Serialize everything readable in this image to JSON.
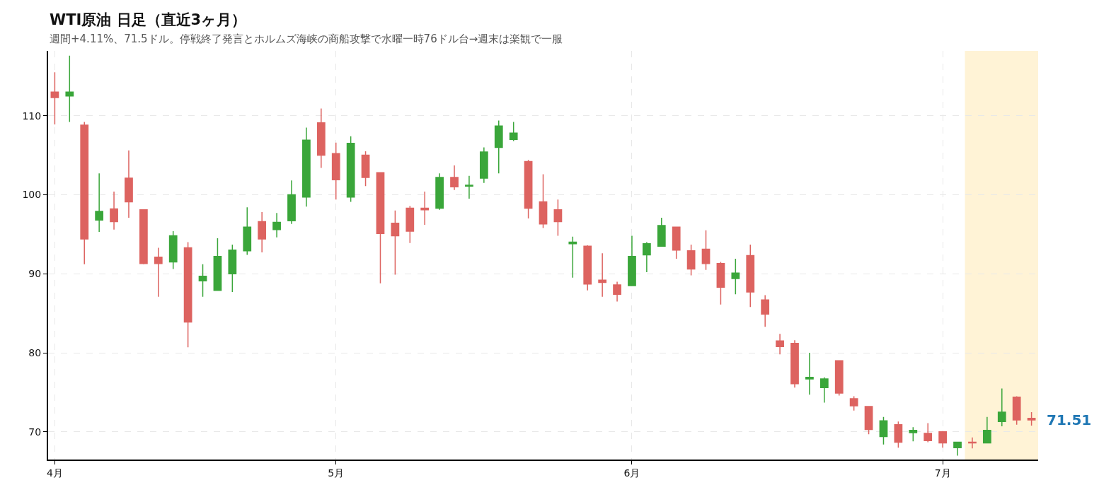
{
  "chart_data": {
    "type": "candlestick",
    "title": "WTI原油 日足（直近3ヶ月）",
    "subtitle": "週間+4.11%、71.5ドル。停戦終了発言とホルムズ海峡の商船攻撃で水曜一時76ドル台→週末は楽観で一服",
    "categories": [
      "4月",
      null,
      null,
      null,
      null,
      null,
      null,
      null,
      null,
      null,
      null,
      null,
      null,
      null,
      null,
      null,
      null,
      null,
      null,
      "5月",
      null,
      null,
      null,
      null,
      null,
      null,
      null,
      null,
      null,
      null,
      null,
      null,
      null,
      null,
      null,
      null,
      null,
      null,
      null,
      "6月",
      null,
      null,
      null,
      null,
      null,
      null,
      null,
      null,
      null,
      null,
      null,
      null,
      null,
      null,
      null,
      null,
      null,
      null,
      null,
      null,
      "7月",
      null,
      null,
      null,
      null,
      null,
      null
    ],
    "ohlc": [
      [
        113.0,
        115.5,
        108.9,
        112.3
      ],
      [
        112.5,
        117.6,
        109.2,
        113.0
      ],
      [
        108.8,
        109.2,
        91.2,
        94.4
      ],
      [
        96.8,
        102.7,
        95.3,
        97.9
      ],
      [
        98.2,
        100.4,
        95.6,
        96.6
      ],
      [
        102.1,
        105.6,
        97.1,
        99.1
      ],
      [
        98.1,
        98.1,
        91.2,
        91.3
      ],
      [
        92.1,
        93.3,
        87.1,
        91.3
      ],
      [
        91.5,
        95.4,
        90.6,
        94.8
      ],
      [
        93.3,
        94.0,
        80.7,
        83.9
      ],
      [
        89.1,
        91.2,
        87.1,
        89.7
      ],
      [
        87.9,
        94.5,
        87.9,
        92.2
      ],
      [
        90.0,
        93.7,
        87.7,
        93.0
      ],
      [
        92.9,
        98.4,
        92.4,
        95.9
      ],
      [
        96.6,
        97.8,
        92.7,
        94.4
      ],
      [
        95.6,
        97.7,
        94.6,
        96.5
      ],
      [
        96.7,
        101.8,
        96.3,
        100.0
      ],
      [
        99.7,
        108.5,
        98.5,
        106.9
      ],
      [
        109.1,
        110.9,
        103.4,
        105.0
      ],
      [
        105.2,
        106.6,
        99.4,
        101.9
      ],
      [
        99.7,
        107.4,
        99.1,
        106.5
      ],
      [
        105.0,
        105.5,
        101.1,
        102.2
      ],
      [
        102.8,
        102.8,
        88.8,
        95.1
      ],
      [
        96.4,
        98.0,
        89.9,
        94.8
      ],
      [
        98.3,
        98.6,
        93.9,
        95.4
      ],
      [
        98.3,
        100.4,
        96.2,
        98.1
      ],
      [
        98.3,
        102.7,
        98.1,
        102.2
      ],
      [
        102.2,
        103.7,
        100.6,
        101.0
      ],
      [
        101.1,
        102.4,
        99.5,
        101.2
      ],
      [
        102.1,
        106.0,
        101.5,
        105.4
      ],
      [
        106.0,
        109.4,
        102.7,
        108.7
      ],
      [
        107.0,
        109.2,
        106.8,
        107.8
      ],
      [
        104.2,
        104.4,
        97.0,
        98.3
      ],
      [
        99.1,
        102.6,
        95.8,
        96.3
      ],
      [
        98.1,
        99.4,
        94.8,
        96.6
      ],
      [
        93.8,
        94.7,
        89.5,
        94.0
      ],
      [
        93.5,
        93.6,
        87.9,
        88.7
      ],
      [
        89.2,
        92.6,
        87.1,
        88.9
      ],
      [
        88.6,
        89.0,
        86.5,
        87.4
      ],
      [
        88.5,
        94.8,
        88.5,
        92.2
      ],
      [
        92.4,
        94.0,
        90.2,
        93.8
      ],
      [
        93.5,
        97.1,
        93.5,
        96.1
      ],
      [
        95.9,
        95.9,
        91.9,
        93.0
      ],
      [
        92.9,
        93.7,
        89.8,
        90.6
      ],
      [
        93.1,
        95.5,
        90.5,
        91.3
      ],
      [
        91.3,
        91.5,
        86.1,
        88.3
      ],
      [
        89.4,
        91.9,
        87.4,
        90.1
      ],
      [
        92.3,
        93.7,
        85.8,
        87.7
      ],
      [
        86.7,
        87.3,
        83.3,
        84.9
      ],
      [
        81.5,
        82.4,
        79.8,
        80.8
      ],
      [
        81.2,
        81.6,
        75.6,
        76.1
      ],
      [
        76.7,
        80.0,
        74.7,
        76.9
      ],
      [
        75.6,
        76.9,
        73.7,
        76.7
      ],
      [
        79.0,
        79.0,
        74.6,
        74.9
      ],
      [
        74.2,
        74.5,
        72.7,
        73.3
      ],
      [
        73.2,
        73.2,
        69.7,
        70.3
      ],
      [
        69.4,
        71.9,
        68.4,
        71.4
      ],
      [
        70.9,
        71.3,
        68.0,
        68.7
      ],
      [
        69.9,
        70.6,
        68.8,
        70.2
      ],
      [
        69.8,
        71.1,
        68.7,
        68.9
      ],
      [
        70.0,
        70.1,
        68.0,
        68.6
      ],
      [
        68.0,
        68.7,
        67.0,
        68.7
      ],
      [
        68.7,
        69.3,
        67.9,
        68.6
      ],
      [
        68.6,
        71.9,
        68.6,
        70.2
      ],
      [
        71.3,
        75.5,
        70.7,
        72.5
      ],
      [
        74.4,
        74.5,
        70.9,
        71.5
      ],
      [
        71.7,
        72.5,
        70.8,
        71.51
      ]
    ],
    "colors": [
      "#dd6360",
      "#3aa63a",
      "#dd6360",
      "#3aa63a",
      "#dd6360",
      "#dd6360",
      "#dd6360",
      "#dd6360",
      "#3aa63a",
      "#dd6360",
      "#3aa63a",
      "#3aa63a",
      "#3aa63a",
      "#3aa63a",
      "#dd6360",
      "#3aa63a",
      "#3aa63a",
      "#3aa63a",
      "#dd6360",
      "#dd6360",
      "#3aa63a",
      "#dd6360",
      "#dd6360",
      "#dd6360",
      "#dd6360",
      "#dd6360",
      "#3aa63a",
      "#dd6360",
      "#3aa63a",
      "#3aa63a",
      "#3aa63a",
      "#3aa63a",
      "#dd6360",
      "#dd6360",
      "#dd6360",
      "#3aa63a",
      "#dd6360",
      "#dd6360",
      "#dd6360",
      "#3aa63a",
      "#3aa63a",
      "#3aa63a",
      "#dd6360",
      "#dd6360",
      "#dd6360",
      "#dd6360",
      "#3aa63a",
      "#dd6360",
      "#dd6360",
      "#dd6360",
      "#dd6360",
      "#3aa63a",
      "#3aa63a",
      "#dd6360",
      "#dd6360",
      "#dd6360",
      "#3aa63a",
      "#dd6360",
      "#3aa63a",
      "#dd6360",
      "#dd6360",
      "#3aa63a",
      "#dd6360",
      "#3aa63a",
      "#3aa63a",
      "#dd6360",
      "#dd6360"
    ],
    "ylim": [
      66.5,
      118.2
    ],
    "yticks": [
      70,
      80,
      90,
      100,
      110
    ],
    "grid": true,
    "annotations": [
      "71.51"
    ]
  }
}
